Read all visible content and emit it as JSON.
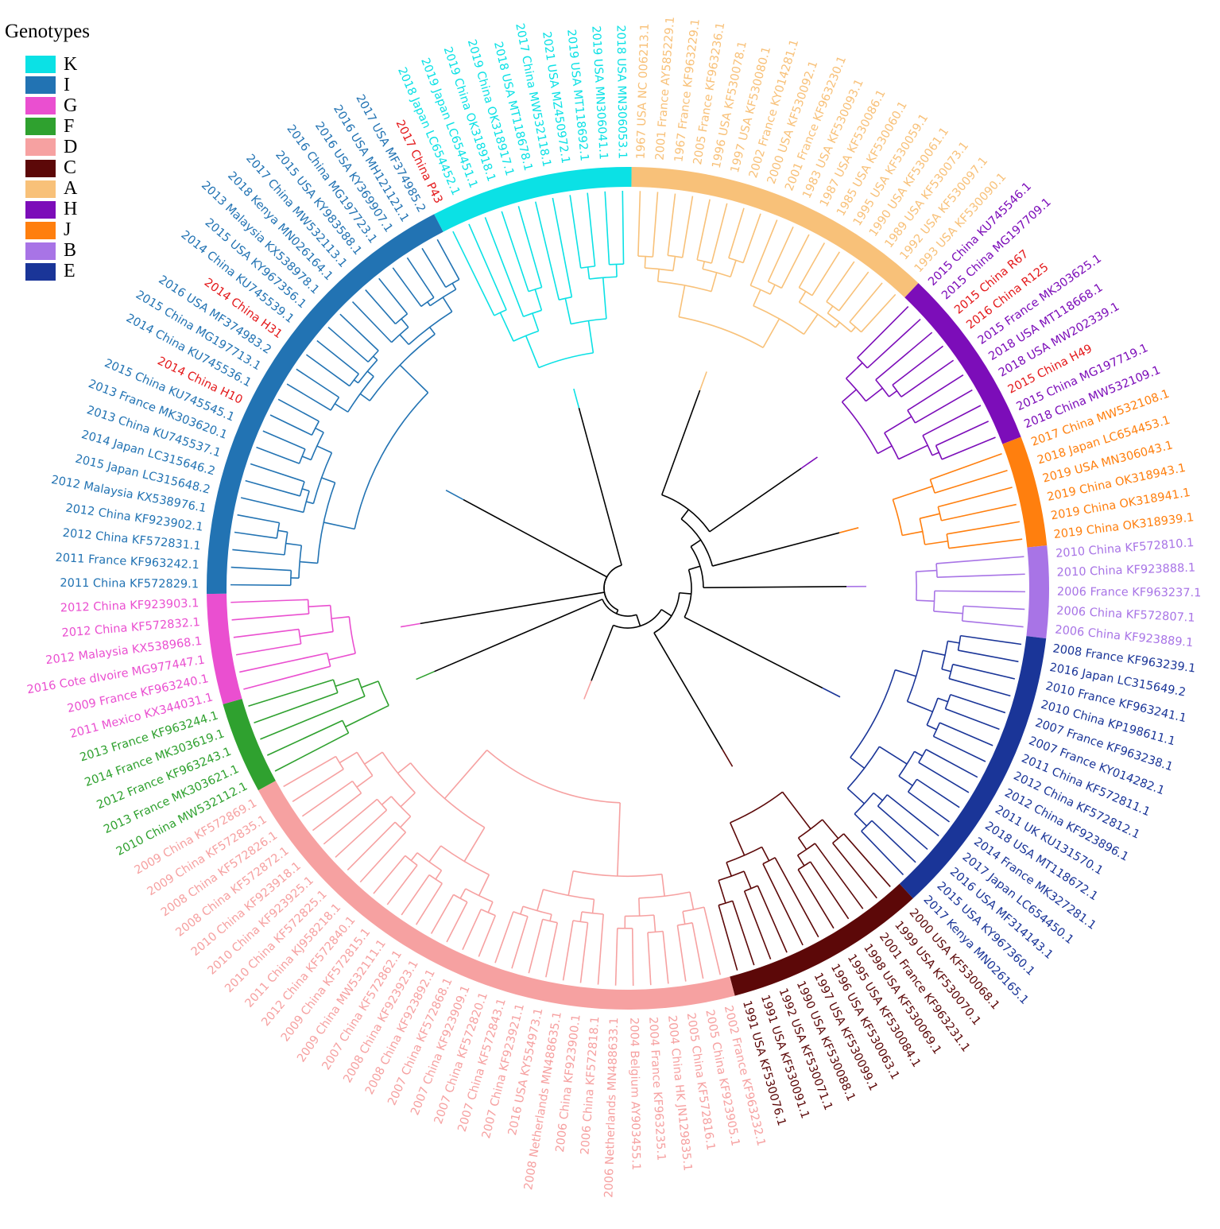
{
  "legend": {
    "title": "Genotypes",
    "items": [
      {
        "key": "K",
        "color": "#0be1e5"
      },
      {
        "key": "I",
        "color": "#2273b3"
      },
      {
        "key": "G",
        "color": "#ea4fd0"
      },
      {
        "key": "F",
        "color": "#2fa12f"
      },
      {
        "key": "D",
        "color": "#f6a1a1"
      },
      {
        "key": "C",
        "color": "#5c0808"
      },
      {
        "key": "A",
        "color": "#f8c179"
      },
      {
        "key": "H",
        "color": "#7c0db9"
      },
      {
        "key": "J",
        "color": "#ff7f0e"
      },
      {
        "key": "B",
        "color": "#a874e6"
      },
      {
        "key": "E",
        "color": "#1a3598"
      }
    ]
  },
  "chart_data": {
    "type": "circular_phylogenetic_tree",
    "title": "",
    "highlight_color": "#e41a1c",
    "clades": [
      {
        "genotype": "A",
        "leaves": [
          "1967 USA NC 006213.1",
          "2001 France AY585229.1",
          "1967 France KF963229.1",
          "2005 France KF963236.1",
          "1996 USA KF530078.1",
          "1997 USA KF530080.1",
          "2002 France KY014281.1",
          "2000 USA KF530092.1",
          "2001 France KF963230.1",
          "1983 USA KF530093.1",
          "1987 USA KF530086.1",
          "1985 USA KF530060.1",
          "1995 USA KF530059.1",
          "1990 USA KF530061.1",
          "1989 USA KF530073.1",
          "1992 USA KF530097.1",
          "1993 USA KF530090.1"
        ]
      },
      {
        "genotype": "H",
        "leaves": [
          "2015 China KU745546.1",
          "2015 China MG197709.1",
          "2015 China R67",
          "2016 China R125",
          "2015 France MK303625.1",
          "2018 USA MT118668.1",
          "2018 USA MW202339.1",
          "2015 China H49",
          "2015 China MG197719.1",
          "2018 China MW532109.1"
        ],
        "highlighted": [
          "2015 China R67",
          "2016 China R125",
          "2015 China H49"
        ]
      },
      {
        "genotype": "J",
        "leaves": [
          "2017 China MW532108.1",
          "2018 Japan LC654453.1",
          "2019 USA MN306043.1",
          "2019 China OK318943.1",
          "2019 China OK318941.1",
          "2019 China OK318939.1"
        ]
      },
      {
        "genotype": "B",
        "leaves": [
          "2010 China KF572810.1",
          "2010 China KF923888.1",
          "2006 France KF963237.1",
          "2006 China KF572807.1",
          "2006 China KF923889.1"
        ]
      },
      {
        "genotype": "E",
        "leaves": [
          "2008 France KF963239.1",
          "2016 Japan LC315649.2",
          "2010 France KF963241.1",
          "2010 China KP198611.1",
          "2007 France KF963238.1",
          "2007 France KY014282.1",
          "2011 China KF572811.1",
          "2012 China KF572812.1",
          "2012 China KF923896.1",
          "2011 UK KU131570.1",
          "2018 USA MT118672.1",
          "2014 France MK327281.1",
          "2017 Japan LC654450.1",
          "2016 USA MF314143.1",
          "2015 USA KY967360.1",
          "2017 Kenya MN026165.1"
        ]
      },
      {
        "genotype": "C",
        "leaves": [
          "2000 USA KF530068.1",
          "1999 USA KF530070.1",
          "2001 France KF963231.1",
          "1998 USA KF530069.1",
          "1995 USA KF530084.1",
          "1996 USA KF530063.1",
          "1997 USA KF530099.1",
          "1990 USA KF530088.1",
          "1992 USA KF530071.1",
          "1991 USA KF530091.1",
          "1991 USA KF530076.1"
        ]
      },
      {
        "genotype": "D",
        "leaves": [
          "2002 France KF963232.1",
          "2005 China KF923905.1",
          "2005 China KF572816.1",
          "2004 China HK JN129835.1",
          "2004 France KF963235.1",
          "2004 Belgium AY903455.1",
          "2006 Netherlands MN488633.1",
          "2006 China KF572818.1",
          "2006 China KF923900.1",
          "2008 Netherlands MN488635.1",
          "2016 USA KY554973.1",
          "2007 China KF923921.1",
          "2007 China KF572843.1",
          "2007 China KF572820.1",
          "2007 China KF923909.1",
          "2007 China KF572868.1",
          "2008 China KF923892.1",
          "2008 China KF923923.1",
          "2007 China KF572862.1",
          "2009 China MW532111.1",
          "2009 China KF572815.1",
          "2012 China KF572840.1",
          "2011 China KJ958218.1",
          "2010 China KF572825.1",
          "2010 China KF923925.1",
          "2010 China KF923918.1",
          "2008 China KF572872.1",
          "2008 China KF572826.1",
          "2009 China KF572835.1",
          "2009 China KF572869.1"
        ]
      },
      {
        "genotype": "F",
        "leaves": [
          "2010 China MW532112.1",
          "2013 France MK303621.1",
          "2012 France KF963243.1",
          "2014 France MK303619.1",
          "2013 France KF963244.1"
        ]
      },
      {
        "genotype": "G",
        "leaves": [
          "2011 Mexico KX344031.1",
          "2009 France KF963240.1",
          "2016 Cote dIvoire MG977447.1",
          "2012 Malaysia KX538968.1",
          "2012 China KF572832.1",
          "2012 China KF923903.1"
        ]
      },
      {
        "genotype": "I",
        "leaves": [
          "2011 China KF572829.1",
          "2011 France KF963242.1",
          "2012 China KF572831.1",
          "2012 China KF923902.1",
          "2012 Malaysia KX538976.1",
          "2015 Japan LC315648.2",
          "2014 Japan LC315646.2",
          "2013 China KU745537.1",
          "2013 France MK303620.1",
          "2015 China KU745545.1",
          "2014 China H10",
          "2014 China KU745536.1",
          "2015 China MG197713.1",
          "2016 USA MF374983.2",
          "2014 China H31",
          "2014 China KU745539.1",
          "2015 USA KY967356.1",
          "2013 Malaysia KX538978.1",
          "2018 Kenya MN026164.1",
          "2017 China MW532113.1",
          "2015 USA KY983588.1",
          "2016 China MG197723.1",
          "2016 USA KY369907.1",
          "2016 USA MH121121.1",
          "2017 USA MF374985.2"
        ],
        "highlighted": [
          "2014 China H10",
          "2014 China H31"
        ]
      },
      {
        "genotype": "K",
        "leaves": [
          "2017 China P43",
          "2018 Japan LC654452.1",
          "2019 Japan LC654451.1",
          "2019 China OK318918.1",
          "2019 China OK318917.1",
          "2018 USA MT118678.1",
          "2017 China MW532118.1",
          "2021 USA MZ450972.1",
          "2019 USA MT118692.1",
          "2019 USA MN306041.1",
          "2018 USA MN306053.1"
        ],
        "highlighted": [
          "2017 China P43"
        ]
      }
    ]
  }
}
